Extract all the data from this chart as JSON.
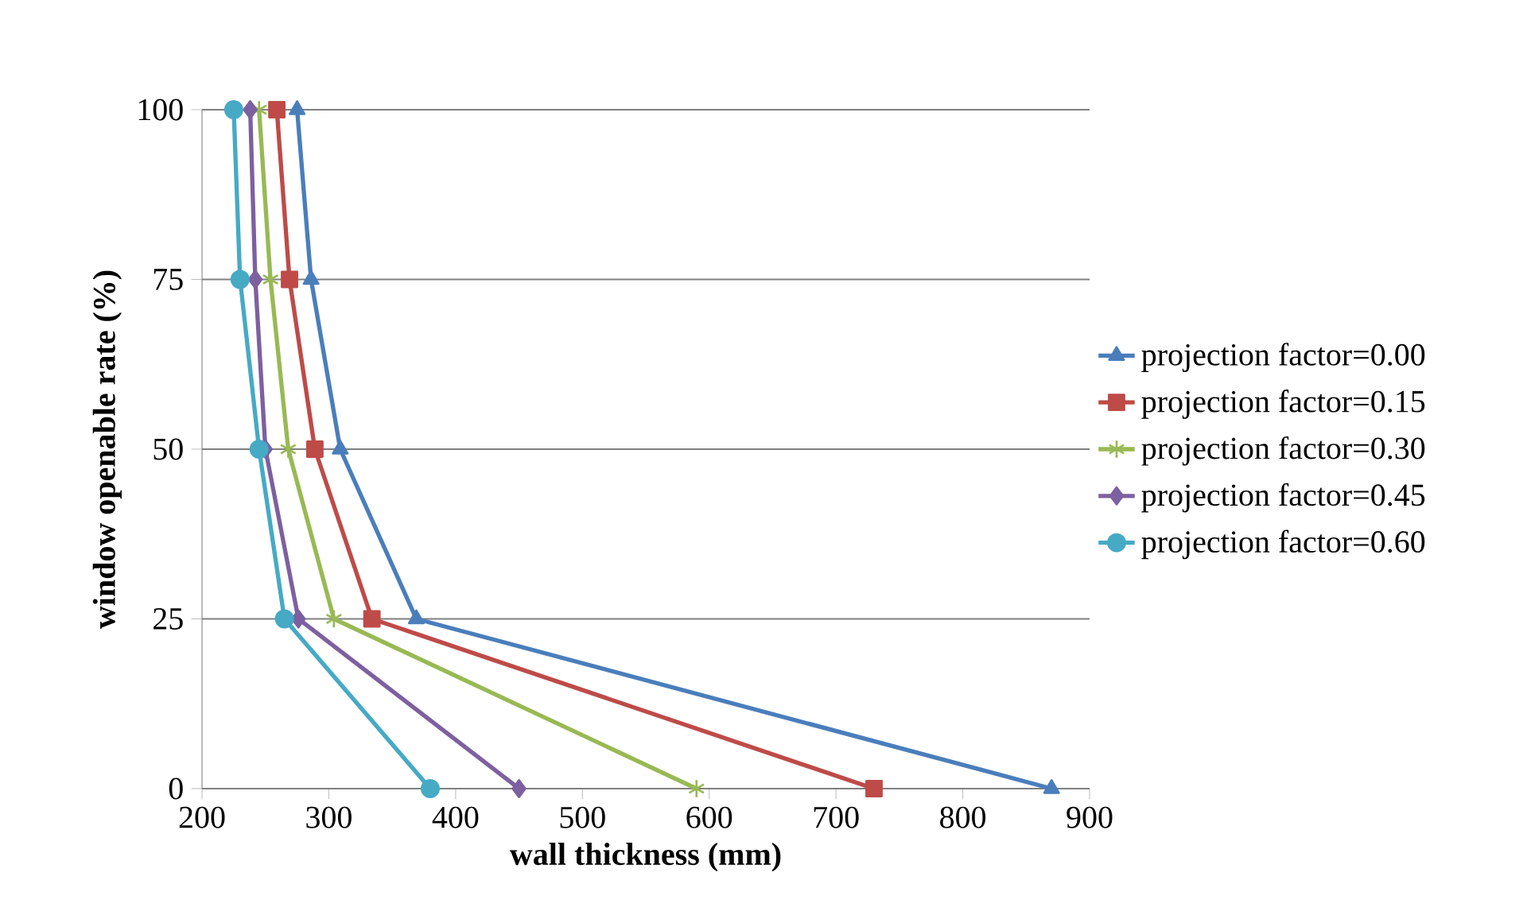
{
  "chart_data": {
    "type": "line",
    "xlabel": "wall thickness (mm)",
    "ylabel": "window openable rate (%)",
    "xlim": [
      200,
      900
    ],
    "xticks": [
      200,
      300,
      400,
      500,
      600,
      700,
      800,
      900
    ],
    "ylim": [
      0,
      100
    ],
    "yticks": [
      0,
      25,
      50,
      75,
      100
    ],
    "grid": "y",
    "legend": "right",
    "line_style": "solid",
    "series": [
      {
        "name": "projection factor=0.00",
        "color": "#4a7ebb",
        "marker": "triangle",
        "x": [
          275,
          286,
          309,
          369,
          870
        ],
        "values": [
          100,
          75,
          50,
          25,
          0
        ]
      },
      {
        "name": "projection factor=0.15",
        "color": "#be4b48",
        "marker": "square",
        "x": [
          259,
          269,
          289,
          334,
          730
        ],
        "values": [
          100,
          75,
          50,
          25,
          0
        ]
      },
      {
        "name": "projection factor=0.30",
        "color": "#98b954",
        "marker": "cross",
        "x": [
          245,
          254,
          268,
          304,
          590
        ],
        "values": [
          100,
          75,
          50,
          25,
          0
        ]
      },
      {
        "name": "projection factor=0.45",
        "color": "#7d60a0",
        "marker": "diamond",
        "x": [
          238,
          242,
          250,
          276,
          450
        ],
        "values": [
          100,
          75,
          50,
          25,
          0
        ]
      },
      {
        "name": "projection factor=0.60",
        "color": "#46aac5",
        "marker": "circle",
        "x": [
          225,
          230,
          245,
          265,
          380
        ],
        "values": [
          100,
          75,
          50,
          25,
          0
        ]
      }
    ]
  }
}
